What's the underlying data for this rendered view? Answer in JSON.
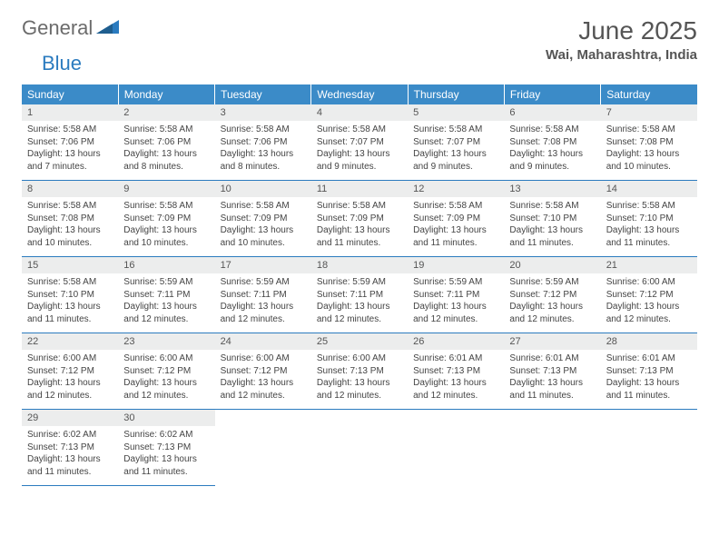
{
  "logo": {
    "text1": "General",
    "text2": "Blue"
  },
  "title": "June 2025",
  "location": "Wai, Maharashtra, India",
  "colors": {
    "header_bg": "#3b8bc8",
    "header_fg": "#ffffff",
    "daynum_bg": "#eceded",
    "border": "#2b7bbf",
    "logo_gray": "#6b6b6b",
    "logo_blue": "#2b7bbf"
  },
  "weekdays": [
    "Sunday",
    "Monday",
    "Tuesday",
    "Wednesday",
    "Thursday",
    "Friday",
    "Saturday"
  ],
  "weeks": [
    [
      {
        "n": "1",
        "sr": "Sunrise: 5:58 AM",
        "ss": "Sunset: 7:06 PM",
        "d1": "Daylight: 13 hours",
        "d2": "and 7 minutes."
      },
      {
        "n": "2",
        "sr": "Sunrise: 5:58 AM",
        "ss": "Sunset: 7:06 PM",
        "d1": "Daylight: 13 hours",
        "d2": "and 8 minutes."
      },
      {
        "n": "3",
        "sr": "Sunrise: 5:58 AM",
        "ss": "Sunset: 7:06 PM",
        "d1": "Daylight: 13 hours",
        "d2": "and 8 minutes."
      },
      {
        "n": "4",
        "sr": "Sunrise: 5:58 AM",
        "ss": "Sunset: 7:07 PM",
        "d1": "Daylight: 13 hours",
        "d2": "and 9 minutes."
      },
      {
        "n": "5",
        "sr": "Sunrise: 5:58 AM",
        "ss": "Sunset: 7:07 PM",
        "d1": "Daylight: 13 hours",
        "d2": "and 9 minutes."
      },
      {
        "n": "6",
        "sr": "Sunrise: 5:58 AM",
        "ss": "Sunset: 7:08 PM",
        "d1": "Daylight: 13 hours",
        "d2": "and 9 minutes."
      },
      {
        "n": "7",
        "sr": "Sunrise: 5:58 AM",
        "ss": "Sunset: 7:08 PM",
        "d1": "Daylight: 13 hours",
        "d2": "and 10 minutes."
      }
    ],
    [
      {
        "n": "8",
        "sr": "Sunrise: 5:58 AM",
        "ss": "Sunset: 7:08 PM",
        "d1": "Daylight: 13 hours",
        "d2": "and 10 minutes."
      },
      {
        "n": "9",
        "sr": "Sunrise: 5:58 AM",
        "ss": "Sunset: 7:09 PM",
        "d1": "Daylight: 13 hours",
        "d2": "and 10 minutes."
      },
      {
        "n": "10",
        "sr": "Sunrise: 5:58 AM",
        "ss": "Sunset: 7:09 PM",
        "d1": "Daylight: 13 hours",
        "d2": "and 10 minutes."
      },
      {
        "n": "11",
        "sr": "Sunrise: 5:58 AM",
        "ss": "Sunset: 7:09 PM",
        "d1": "Daylight: 13 hours",
        "d2": "and 11 minutes."
      },
      {
        "n": "12",
        "sr": "Sunrise: 5:58 AM",
        "ss": "Sunset: 7:09 PM",
        "d1": "Daylight: 13 hours",
        "d2": "and 11 minutes."
      },
      {
        "n": "13",
        "sr": "Sunrise: 5:58 AM",
        "ss": "Sunset: 7:10 PM",
        "d1": "Daylight: 13 hours",
        "d2": "and 11 minutes."
      },
      {
        "n": "14",
        "sr": "Sunrise: 5:58 AM",
        "ss": "Sunset: 7:10 PM",
        "d1": "Daylight: 13 hours",
        "d2": "and 11 minutes."
      }
    ],
    [
      {
        "n": "15",
        "sr": "Sunrise: 5:58 AM",
        "ss": "Sunset: 7:10 PM",
        "d1": "Daylight: 13 hours",
        "d2": "and 11 minutes."
      },
      {
        "n": "16",
        "sr": "Sunrise: 5:59 AM",
        "ss": "Sunset: 7:11 PM",
        "d1": "Daylight: 13 hours",
        "d2": "and 12 minutes."
      },
      {
        "n": "17",
        "sr": "Sunrise: 5:59 AM",
        "ss": "Sunset: 7:11 PM",
        "d1": "Daylight: 13 hours",
        "d2": "and 12 minutes."
      },
      {
        "n": "18",
        "sr": "Sunrise: 5:59 AM",
        "ss": "Sunset: 7:11 PM",
        "d1": "Daylight: 13 hours",
        "d2": "and 12 minutes."
      },
      {
        "n": "19",
        "sr": "Sunrise: 5:59 AM",
        "ss": "Sunset: 7:11 PM",
        "d1": "Daylight: 13 hours",
        "d2": "and 12 minutes."
      },
      {
        "n": "20",
        "sr": "Sunrise: 5:59 AM",
        "ss": "Sunset: 7:12 PM",
        "d1": "Daylight: 13 hours",
        "d2": "and 12 minutes."
      },
      {
        "n": "21",
        "sr": "Sunrise: 6:00 AM",
        "ss": "Sunset: 7:12 PM",
        "d1": "Daylight: 13 hours",
        "d2": "and 12 minutes."
      }
    ],
    [
      {
        "n": "22",
        "sr": "Sunrise: 6:00 AM",
        "ss": "Sunset: 7:12 PM",
        "d1": "Daylight: 13 hours",
        "d2": "and 12 minutes."
      },
      {
        "n": "23",
        "sr": "Sunrise: 6:00 AM",
        "ss": "Sunset: 7:12 PM",
        "d1": "Daylight: 13 hours",
        "d2": "and 12 minutes."
      },
      {
        "n": "24",
        "sr": "Sunrise: 6:00 AM",
        "ss": "Sunset: 7:12 PM",
        "d1": "Daylight: 13 hours",
        "d2": "and 12 minutes."
      },
      {
        "n": "25",
        "sr": "Sunrise: 6:00 AM",
        "ss": "Sunset: 7:13 PM",
        "d1": "Daylight: 13 hours",
        "d2": "and 12 minutes."
      },
      {
        "n": "26",
        "sr": "Sunrise: 6:01 AM",
        "ss": "Sunset: 7:13 PM",
        "d1": "Daylight: 13 hours",
        "d2": "and 12 minutes."
      },
      {
        "n": "27",
        "sr": "Sunrise: 6:01 AM",
        "ss": "Sunset: 7:13 PM",
        "d1": "Daylight: 13 hours",
        "d2": "and 11 minutes."
      },
      {
        "n": "28",
        "sr": "Sunrise: 6:01 AM",
        "ss": "Sunset: 7:13 PM",
        "d1": "Daylight: 13 hours",
        "d2": "and 11 minutes."
      }
    ],
    [
      {
        "n": "29",
        "sr": "Sunrise: 6:02 AM",
        "ss": "Sunset: 7:13 PM",
        "d1": "Daylight: 13 hours",
        "d2": "and 11 minutes."
      },
      {
        "n": "30",
        "sr": "Sunrise: 6:02 AM",
        "ss": "Sunset: 7:13 PM",
        "d1": "Daylight: 13 hours",
        "d2": "and 11 minutes."
      },
      null,
      null,
      null,
      null,
      null
    ]
  ]
}
